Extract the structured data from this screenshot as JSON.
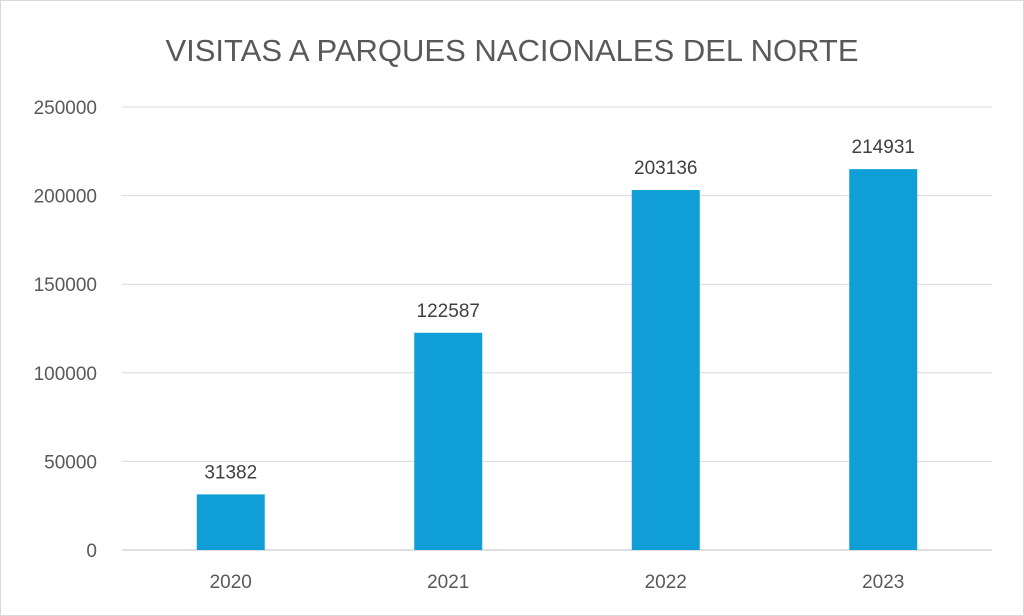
{
  "chart_data": {
    "type": "bar",
    "title": "VISITAS A PARQUES NACIONALES DEL NORTE",
    "categories": [
      "2020",
      "2021",
      "2022",
      "2023"
    ],
    "values": [
      31382,
      122587,
      203136,
      214931
    ],
    "data_labels": [
      "31382",
      "122587",
      "203136",
      "214931"
    ],
    "yticks": [
      "0",
      "50000",
      "100000",
      "150000",
      "200000",
      "250000"
    ],
    "ytick_values": [
      0,
      50000,
      100000,
      150000,
      200000,
      250000
    ],
    "ylim": [
      0,
      250000
    ],
    "xlabel": "",
    "ylabel": "",
    "grid": true,
    "legend": "none",
    "bar_color": "#0f9ed5"
  }
}
